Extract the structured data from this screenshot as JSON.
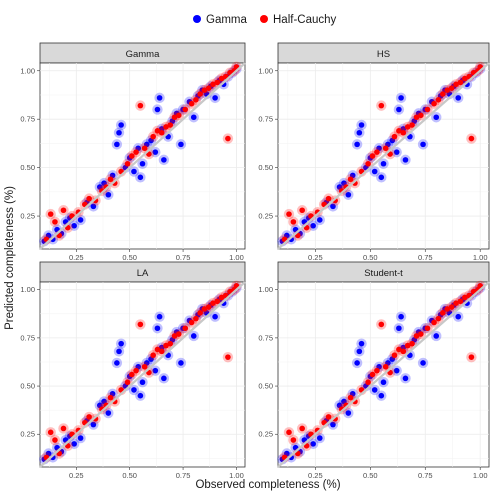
{
  "chart_data": {
    "type": "scatter",
    "xlabel": "Observed completeness (%)",
    "ylabel": "Predicted completeness (%)",
    "xlim": [
      0.08,
      1.04
    ],
    "ylim": [
      0.08,
      1.04
    ],
    "x_ticks": [
      "0.25",
      "0.50",
      "0.75",
      "1.00"
    ],
    "y_ticks": [
      "0.25",
      "0.50",
      "0.75",
      "1.00"
    ],
    "grid": true,
    "legend_position": "top",
    "reference_line": "y = x",
    "colors": {
      "Gamma": "#0000ff",
      "Half-Cauchy": "#ff0000",
      "reference_line": "#c8c8c8",
      "strip": "#d9d9d9"
    },
    "series": [
      {
        "name": "Gamma",
        "points": [
          [
            0.1,
            0.12
          ],
          [
            0.12,
            0.15
          ],
          [
            0.14,
            0.13
          ],
          [
            0.16,
            0.18
          ],
          [
            0.18,
            0.16
          ],
          [
            0.2,
            0.22
          ],
          [
            0.22,
            0.24
          ],
          [
            0.24,
            0.2
          ],
          [
            0.27,
            0.23
          ],
          [
            0.3,
            0.32
          ],
          [
            0.33,
            0.3
          ],
          [
            0.36,
            0.4
          ],
          [
            0.38,
            0.42
          ],
          [
            0.4,
            0.36
          ],
          [
            0.42,
            0.46
          ],
          [
            0.44,
            0.62
          ],
          [
            0.45,
            0.68
          ],
          [
            0.46,
            0.72
          ],
          [
            0.48,
            0.5
          ],
          [
            0.5,
            0.55
          ],
          [
            0.52,
            0.48
          ],
          [
            0.54,
            0.6
          ],
          [
            0.55,
            0.45
          ],
          [
            0.56,
            0.52
          ],
          [
            0.58,
            0.62
          ],
          [
            0.6,
            0.64
          ],
          [
            0.62,
            0.58
          ],
          [
            0.63,
            0.8
          ],
          [
            0.64,
            0.86
          ],
          [
            0.65,
            0.7
          ],
          [
            0.66,
            0.54
          ],
          [
            0.68,
            0.66
          ],
          [
            0.7,
            0.74
          ],
          [
            0.72,
            0.78
          ],
          [
            0.74,
            0.62
          ],
          [
            0.75,
            0.8
          ],
          [
            0.78,
            0.84
          ],
          [
            0.8,
            0.76
          ],
          [
            0.82,
            0.87
          ],
          [
            0.84,
            0.9
          ],
          [
            0.86,
            0.88
          ],
          [
            0.88,
            0.92
          ],
          [
            0.9,
            0.86
          ],
          [
            0.92,
            0.95
          ],
          [
            0.94,
            0.93
          ],
          [
            0.96,
            0.97
          ],
          [
            0.98,
            0.99
          ],
          [
            1.0,
            1.01
          ]
        ]
      },
      {
        "name": "Half-Cauchy",
        "points": [
          [
            0.11,
            0.13
          ],
          [
            0.13,
            0.26
          ],
          [
            0.15,
            0.22
          ],
          [
            0.17,
            0.15
          ],
          [
            0.19,
            0.28
          ],
          [
            0.21,
            0.19
          ],
          [
            0.23,
            0.25
          ],
          [
            0.26,
            0.27
          ],
          [
            0.29,
            0.31
          ],
          [
            0.31,
            0.34
          ],
          [
            0.34,
            0.33
          ],
          [
            0.37,
            0.38
          ],
          [
            0.39,
            0.4
          ],
          [
            0.41,
            0.44
          ],
          [
            0.43,
            0.42
          ],
          [
            0.46,
            0.48
          ],
          [
            0.49,
            0.52
          ],
          [
            0.51,
            0.56
          ],
          [
            0.53,
            0.58
          ],
          [
            0.55,
            0.82
          ],
          [
            0.57,
            0.6
          ],
          [
            0.59,
            0.57
          ],
          [
            0.61,
            0.66
          ],
          [
            0.63,
            0.69
          ],
          [
            0.65,
            0.68
          ],
          [
            0.67,
            0.71
          ],
          [
            0.69,
            0.72
          ],
          [
            0.71,
            0.76
          ],
          [
            0.73,
            0.77
          ],
          [
            0.76,
            0.8
          ],
          [
            0.79,
            0.83
          ],
          [
            0.81,
            0.85
          ],
          [
            0.83,
            0.88
          ],
          [
            0.85,
            0.9
          ],
          [
            0.87,
            0.91
          ],
          [
            0.89,
            0.93
          ],
          [
            0.91,
            0.94
          ],
          [
            0.93,
            0.96
          ],
          [
            0.95,
            0.97
          ],
          [
            0.96,
            0.65
          ],
          [
            0.97,
            0.99
          ],
          [
            0.99,
            1.0
          ],
          [
            1.0,
            1.02
          ]
        ]
      }
    ],
    "panels": [
      "Gamma",
      "HS",
      "LA",
      "Student-t"
    ]
  }
}
